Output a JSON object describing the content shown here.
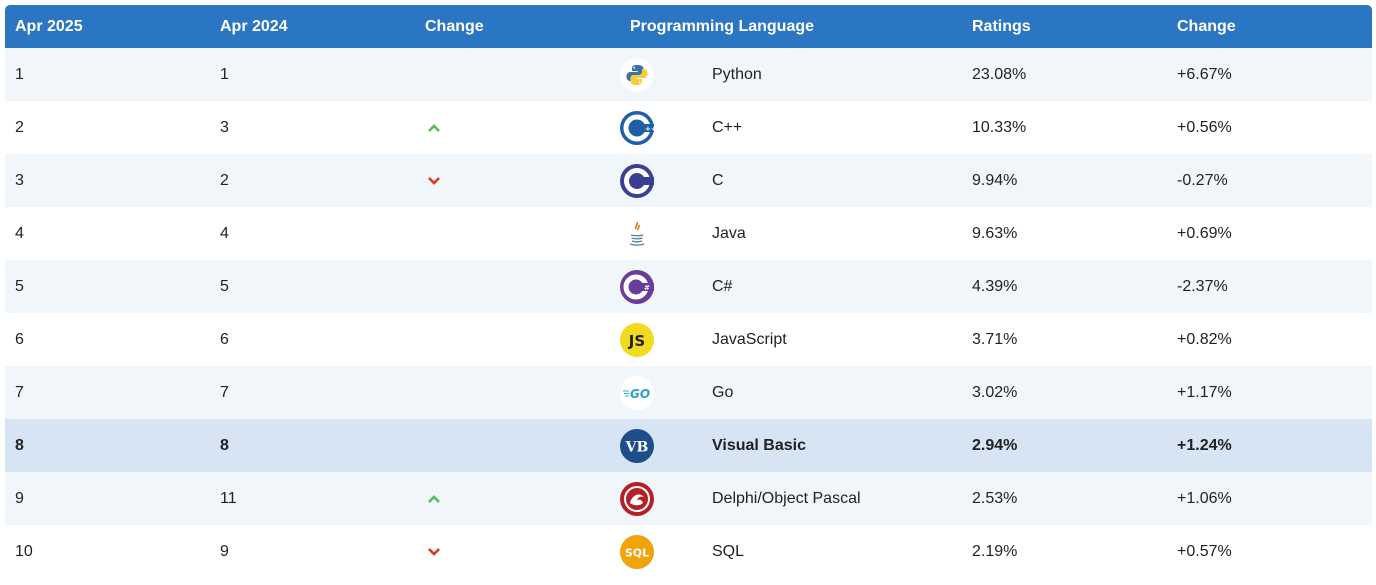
{
  "headers": {
    "col1": "Apr 2025",
    "col2": "Apr 2024",
    "col3": "Change",
    "col4": "Programming Language",
    "col5": "Ratings",
    "col6": "Change"
  },
  "rows": [
    {
      "rank_2025": "1",
      "rank_2024": "1",
      "trend": "none",
      "icon": "python-icon",
      "language": "Python",
      "ratings": "23.08%",
      "change": "+6.67%"
    },
    {
      "rank_2025": "2",
      "rank_2024": "3",
      "trend": "up",
      "icon": "cplusplus-icon",
      "language": "C++",
      "ratings": "10.33%",
      "change": "+0.56%"
    },
    {
      "rank_2025": "3",
      "rank_2024": "2",
      "trend": "down",
      "icon": "c-icon",
      "language": "C",
      "ratings": "9.94%",
      "change": "-0.27%"
    },
    {
      "rank_2025": "4",
      "rank_2024": "4",
      "trend": "none",
      "icon": "java-icon",
      "language": "Java",
      "ratings": "9.63%",
      "change": "+0.69%"
    },
    {
      "rank_2025": "5",
      "rank_2024": "5",
      "trend": "none",
      "icon": "csharp-icon",
      "language": "C#",
      "ratings": "4.39%",
      "change": "-2.37%"
    },
    {
      "rank_2025": "6",
      "rank_2024": "6",
      "trend": "none",
      "icon": "javascript-icon",
      "language": "JavaScript",
      "ratings": "3.71%",
      "change": "+0.82%"
    },
    {
      "rank_2025": "7",
      "rank_2024": "7",
      "trend": "none",
      "icon": "go-icon",
      "language": "Go",
      "ratings": "3.02%",
      "change": "+1.17%"
    },
    {
      "rank_2025": "8",
      "rank_2024": "8",
      "trend": "none",
      "icon": "visual-basic-icon",
      "language": "Visual Basic",
      "ratings": "2.94%",
      "change": "+1.24%",
      "highlighted": true
    },
    {
      "rank_2025": "9",
      "rank_2024": "11",
      "trend": "up",
      "icon": "delphi-icon",
      "language": "Delphi/Object Pascal",
      "ratings": "2.53%",
      "change": "+1.06%"
    },
    {
      "rank_2025": "10",
      "rank_2024": "9",
      "trend": "down",
      "icon": "sql-icon",
      "language": "SQL",
      "ratings": "2.19%",
      "change": "+0.57%"
    }
  ],
  "logo_text": {
    "javascript": "JS",
    "go": "GO",
    "visual_basic": "VB",
    "sql": "SQL"
  },
  "colors": {
    "header_bg": "#2a76c3",
    "row_odd": "#f1f6fb",
    "row_even": "#ffffff",
    "row_highlight": "#d6e4f4",
    "arrow_up": "#5cb85c",
    "arrow_down": "#d9381e"
  }
}
